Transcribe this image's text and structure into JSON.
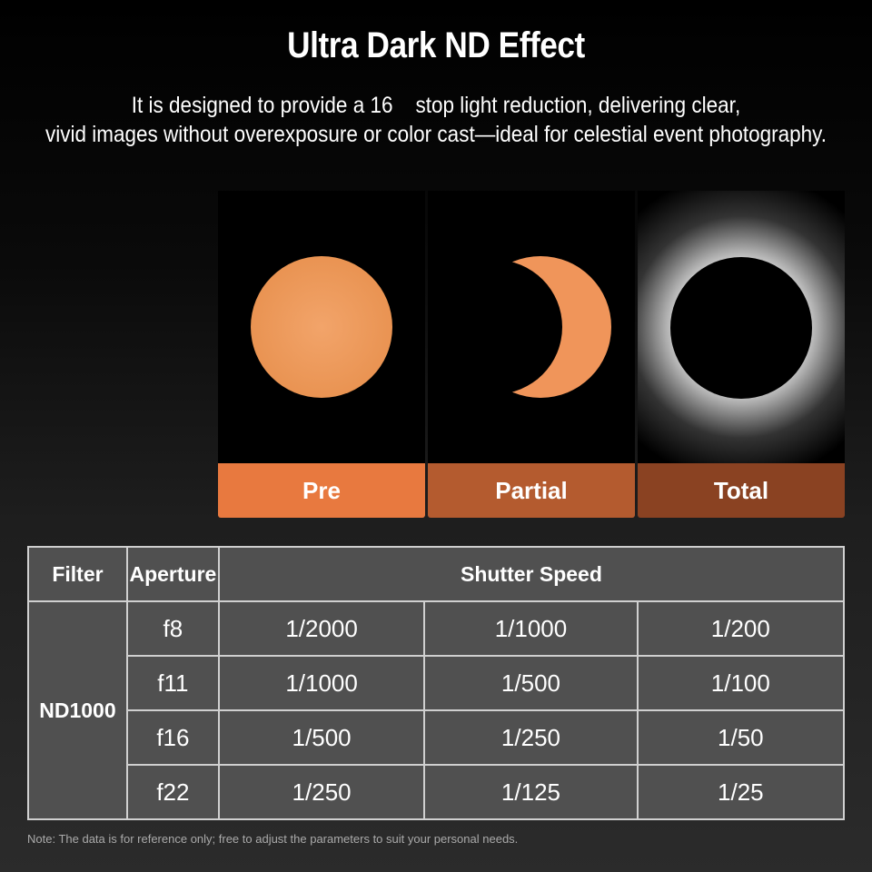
{
  "title": "Ultra Dark ND Effect",
  "subtitle": [
    "It is designed to provide a 16    stop light reduction, delivering clear,",
    "vivid images without overexposure or color cast—ideal for celestial event photography."
  ],
  "panels": [
    {
      "label": "Pre",
      "color": "#e8793f"
    },
    {
      "label": "Partial",
      "color": "#b45b2f"
    },
    {
      "label": "Total",
      "color": "#8a4222"
    }
  ],
  "table": {
    "headers": [
      "Filter",
      "Aperture",
      "Shutter Speed"
    ],
    "filter": "ND1000",
    "rows": [
      {
        "aperture": "f8",
        "speeds": [
          "1/2000",
          "1/1000",
          "1/200"
        ]
      },
      {
        "aperture": "f11",
        "speeds": [
          "1/1000",
          "1/500",
          "1/100"
        ]
      },
      {
        "aperture": "f16",
        "speeds": [
          "1/500",
          "1/250",
          "1/50"
        ]
      },
      {
        "aperture": "f22",
        "speeds": [
          "1/250",
          "1/125",
          "1/25"
        ]
      }
    ]
  },
  "note": "Note: The data is for reference only; free to adjust the parameters to suit your personal needs."
}
